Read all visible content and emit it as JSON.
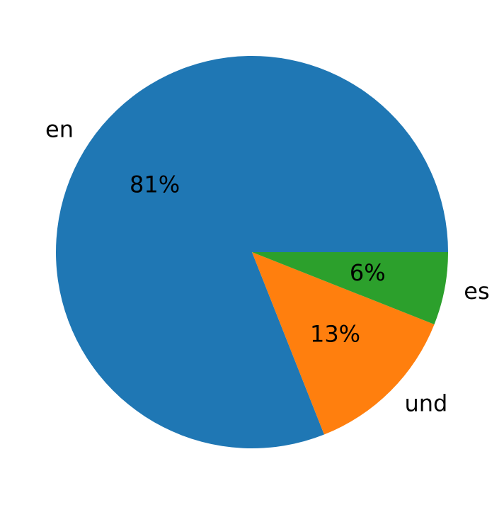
{
  "chart_data": {
    "type": "pie",
    "categories": [
      "en",
      "und",
      "es"
    ],
    "values": [
      81,
      13,
      6
    ],
    "value_labels": [
      "81%",
      "13%",
      "6%"
    ],
    "colors": [
      "#1f77b4",
      "#ff7f0e",
      "#2ca02c"
    ]
  }
}
